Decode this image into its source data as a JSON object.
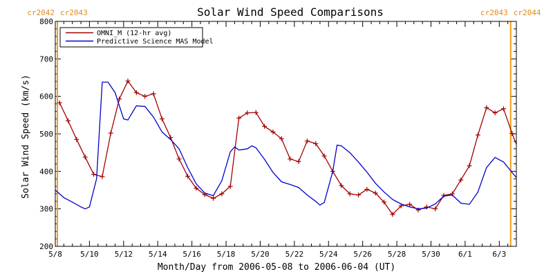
{
  "chart_data": {
    "type": "line",
    "title": "Solar Wind Speed Comparisons",
    "xlabel": "Month/Day from 2006-05-08 to 2006-06-04 (UT)",
    "ylabel": "Solar Wind Speed (km/s)",
    "xlim": [
      "2006-05-08",
      "2006-06-04"
    ],
    "ylim": [
      200,
      800
    ],
    "y_ticks": [
      200,
      300,
      400,
      500,
      600,
      700,
      800
    ],
    "x_ticks": [
      {
        "date": "2006-05-08",
        "label": "5/8"
      },
      {
        "date": "2006-05-10",
        "label": "5/10"
      },
      {
        "date": "2006-05-12",
        "label": "5/12"
      },
      {
        "date": "2006-05-14",
        "label": "5/14"
      },
      {
        "date": "2006-05-16",
        "label": "5/16"
      },
      {
        "date": "2006-05-18",
        "label": "5/18"
      },
      {
        "date": "2006-05-20",
        "label": "5/20"
      },
      {
        "date": "2006-05-22",
        "label": "5/22"
      },
      {
        "date": "2006-05-24",
        "label": "5/24"
      },
      {
        "date": "2006-05-26",
        "label": "5/26"
      },
      {
        "date": "2006-05-28",
        "label": "5/28"
      },
      {
        "date": "2006-05-30",
        "label": "5/30"
      },
      {
        "date": "2006-06-01",
        "label": "6/1"
      },
      {
        "date": "2006-06-03",
        "label": "6/3"
      }
    ],
    "carrington_markers": [
      {
        "date": "2006-05-08",
        "left_label": "cr2042",
        "right_label": "cr2043"
      },
      {
        "date": "2006-06-03 16:00",
        "left_label": "cr2043",
        "right_label": "cr2044"
      }
    ],
    "legend": {
      "placement": "top-left"
    },
    "series": [
      {
        "name": "OMNI_M (12-hr avg)",
        "color": "#a00000",
        "marker": "plus",
        "points": [
          [
            "2006-05-08 06:00",
            583
          ],
          [
            "2006-05-08 18:00",
            535
          ],
          [
            "2006-05-09 06:00",
            485
          ],
          [
            "2006-05-09 18:00",
            438
          ],
          [
            "2006-05-10 06:00",
            392
          ],
          [
            "2006-05-10 18:00",
            386
          ],
          [
            "2006-05-11 06:00",
            502
          ],
          [
            "2006-05-11 18:00",
            593
          ],
          [
            "2006-05-12 06:00",
            641
          ],
          [
            "2006-05-12 18:00",
            610
          ],
          [
            "2006-05-13 06:00",
            600
          ],
          [
            "2006-05-13 18:00",
            607
          ],
          [
            "2006-05-14 06:00",
            540
          ],
          [
            "2006-05-14 18:00",
            490
          ],
          [
            "2006-05-15 06:00",
            433
          ],
          [
            "2006-05-15 18:00",
            387
          ],
          [
            "2006-05-16 06:00",
            355
          ],
          [
            "2006-05-16 18:00",
            338
          ],
          [
            "2006-05-17 06:00",
            328
          ],
          [
            "2006-05-17 18:00",
            340
          ],
          [
            "2006-05-18 06:00",
            360
          ],
          [
            "2006-05-18 18:00",
            542
          ],
          [
            "2006-05-19 06:00",
            556
          ],
          [
            "2006-05-19 18:00",
            557
          ],
          [
            "2006-05-20 06:00",
            520
          ],
          [
            "2006-05-20 18:00",
            505
          ],
          [
            "2006-05-21 06:00",
            487
          ],
          [
            "2006-05-21 18:00",
            433
          ],
          [
            "2006-05-22 06:00",
            426
          ],
          [
            "2006-05-22 18:00",
            481
          ],
          [
            "2006-05-23 06:00",
            474
          ],
          [
            "2006-05-23 18:00",
            441
          ],
          [
            "2006-05-24 06:00",
            400
          ],
          [
            "2006-05-24 18:00",
            362
          ],
          [
            "2006-05-25 06:00",
            340
          ],
          [
            "2006-05-25 18:00",
            337
          ],
          [
            "2006-05-26 06:00",
            352
          ],
          [
            "2006-05-26 18:00",
            342
          ],
          [
            "2006-05-27 06:00",
            318
          ],
          [
            "2006-05-27 18:00",
            285
          ],
          [
            "2006-05-28 06:00",
            308
          ],
          [
            "2006-05-28 18:00",
            312
          ],
          [
            "2006-05-29 06:00",
            297
          ],
          [
            "2006-05-29 18:00",
            305
          ],
          [
            "2006-05-30 06:00",
            300
          ],
          [
            "2006-05-30 18:00",
            336
          ],
          [
            "2006-05-31 06:00",
            340
          ],
          [
            "2006-05-31 18:00",
            377
          ],
          [
            "2006-06-01 06:00",
            415
          ],
          [
            "2006-06-01 18:00",
            497
          ],
          [
            "2006-06-02 06:00",
            570
          ],
          [
            "2006-06-02 18:00",
            556
          ],
          [
            "2006-06-03 06:00",
            567
          ],
          [
            "2006-06-03 18:00",
            501
          ],
          [
            "2006-06-04 06:00",
            444
          ]
        ]
      },
      {
        "name": "Predictive Science MAS Model",
        "color": "#0000cc",
        "marker": "none",
        "points": [
          [
            "2006-05-08 00:00",
            350
          ],
          [
            "2006-05-08 12:00",
            330
          ],
          [
            "2006-05-09 00:00",
            318
          ],
          [
            "2006-05-09 12:00",
            305
          ],
          [
            "2006-05-09 18:00",
            300
          ],
          [
            "2006-05-10 00:00",
            305
          ],
          [
            "2006-05-10 10:00",
            380
          ],
          [
            "2006-05-10 18:00",
            638
          ],
          [
            "2006-05-11 02:00",
            638
          ],
          [
            "2006-05-11 12:00",
            610
          ],
          [
            "2006-05-12 00:00",
            540
          ],
          [
            "2006-05-12 06:00",
            537
          ],
          [
            "2006-05-12 18:00",
            575
          ],
          [
            "2006-05-13 06:00",
            573
          ],
          [
            "2006-05-13 18:00",
            545
          ],
          [
            "2006-05-14 06:00",
            505
          ],
          [
            "2006-05-14 18:00",
            485
          ],
          [
            "2006-05-15 06:00",
            460
          ],
          [
            "2006-05-15 18:00",
            410
          ],
          [
            "2006-05-16 06:00",
            367
          ],
          [
            "2006-05-16 18:00",
            342
          ],
          [
            "2006-05-17 06:00",
            335
          ],
          [
            "2006-05-17 18:00",
            375
          ],
          [
            "2006-05-18 06:00",
            452
          ],
          [
            "2006-05-18 12:00",
            465
          ],
          [
            "2006-05-18 18:00",
            457
          ],
          [
            "2006-05-19 06:00",
            460
          ],
          [
            "2006-05-19 12:00",
            468
          ],
          [
            "2006-05-19 18:00",
            463
          ],
          [
            "2006-05-20 06:00",
            432
          ],
          [
            "2006-05-20 18:00",
            397
          ],
          [
            "2006-05-21 06:00",
            372
          ],
          [
            "2006-05-21 18:00",
            365
          ],
          [
            "2006-05-22 06:00",
            357
          ],
          [
            "2006-05-22 18:00",
            337
          ],
          [
            "2006-05-23 06:00",
            320
          ],
          [
            "2006-05-23 12:00",
            310
          ],
          [
            "2006-05-23 18:00",
            317
          ],
          [
            "2006-05-24 06:00",
            400
          ],
          [
            "2006-05-24 12:00",
            470
          ],
          [
            "2006-05-24 18:00",
            468
          ],
          [
            "2006-05-25 06:00",
            450
          ],
          [
            "2006-05-25 18:00",
            425
          ],
          [
            "2006-05-26 06:00",
            398
          ],
          [
            "2006-05-26 18:00",
            368
          ],
          [
            "2006-05-27 06:00",
            345
          ],
          [
            "2006-05-27 18:00",
            325
          ],
          [
            "2006-05-28 06:00",
            313
          ],
          [
            "2006-05-28 18:00",
            305
          ],
          [
            "2006-05-29 06:00",
            300
          ],
          [
            "2006-05-29 18:00",
            302
          ],
          [
            "2006-05-30 06:00",
            313
          ],
          [
            "2006-05-30 18:00",
            334
          ],
          [
            "2006-05-31 06:00",
            337
          ],
          [
            "2006-05-31 18:00",
            315
          ],
          [
            "2006-06-01 06:00",
            312
          ],
          [
            "2006-06-01 18:00",
            345
          ],
          [
            "2006-06-02 06:00",
            410
          ],
          [
            "2006-06-02 18:00",
            437
          ],
          [
            "2006-06-03 06:00",
            425
          ],
          [
            "2006-06-03 18:00",
            397
          ],
          [
            "2006-06-04 06:00",
            370
          ],
          [
            "2006-06-04 18:00",
            345
          ],
          [
            "2006-06-04 22:00",
            340
          ]
        ]
      }
    ]
  }
}
